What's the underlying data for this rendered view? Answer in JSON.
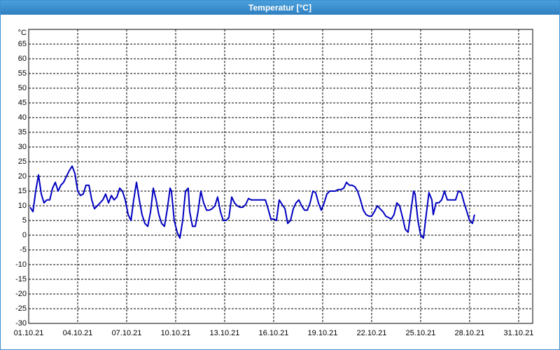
{
  "chart_data": {
    "type": "line",
    "title": "Temperatur [°C]",
    "y_unit": "°C",
    "xlim": [
      0,
      30.86
    ],
    "ylim": [
      -30,
      70
    ],
    "grid": true,
    "xticks": [
      {
        "value": 0,
        "label": "01.10.21"
      },
      {
        "value": 3,
        "label": "04.10.21"
      },
      {
        "value": 6,
        "label": "07.10.21"
      },
      {
        "value": 9,
        "label": "10.10.21"
      },
      {
        "value": 12,
        "label": "13.10.21"
      },
      {
        "value": 15,
        "label": "16.10.21"
      },
      {
        "value": 18,
        "label": "19.10.21"
      },
      {
        "value": 21,
        "label": "22.10.21"
      },
      {
        "value": 24,
        "label": "25.10.21"
      },
      {
        "value": 27,
        "label": "28.10.21"
      },
      {
        "value": 30,
        "label": "31.10.21"
      }
    ],
    "yticks": [
      -30,
      -25,
      -20,
      -15,
      -10,
      -5,
      0,
      5,
      10,
      15,
      20,
      25,
      30,
      35,
      40,
      45,
      50,
      55,
      60,
      65
    ],
    "series": [
      {
        "color": "#0000c0",
        "x": [
          0.09,
          0.26,
          0.43,
          0.6,
          0.77,
          0.94,
          1.11,
          1.29,
          1.46,
          1.63,
          1.8,
          1.97,
          2.14,
          2.31,
          2.49,
          2.66,
          2.83,
          3.0,
          3.17,
          3.34,
          3.51,
          3.69,
          3.86,
          4.03,
          4.2,
          4.37,
          4.54,
          4.71,
          4.89,
          5.06,
          5.23,
          5.4,
          5.57,
          5.74,
          5.91,
          6.09,
          6.26,
          6.43,
          6.6,
          6.77,
          6.94,
          7.11,
          7.29,
          7.46,
          7.63,
          7.8,
          7.97,
          8.14,
          8.31,
          8.49,
          8.66,
          8.74,
          8.91,
          9.09,
          9.26,
          9.43,
          9.6,
          9.77,
          9.86,
          10.03,
          10.2,
          10.37,
          10.54,
          10.71,
          10.89,
          11.06,
          11.23,
          11.4,
          11.57,
          11.74,
          11.91,
          12.09,
          12.26,
          12.43,
          12.6,
          12.77,
          12.94,
          13.11,
          13.29,
          13.46,
          13.63,
          13.8,
          13.97,
          14.14,
          14.31,
          14.49,
          14.66,
          14.83,
          15.0,
          15.17,
          15.34,
          15.51,
          15.69,
          15.86,
          16.03,
          16.2,
          16.37,
          16.54,
          16.71,
          16.89,
          17.06,
          17.23,
          17.4,
          17.57,
          17.74,
          17.91,
          18.09,
          18.26,
          18.43,
          18.6,
          18.77,
          18.94,
          19.11,
          19.29,
          19.46,
          19.63,
          19.8,
          19.97,
          20.14,
          20.31,
          20.49,
          20.66,
          20.83,
          21.0,
          21.17,
          21.34,
          21.51,
          21.69,
          21.86,
          22.03,
          22.2,
          22.37,
          22.54,
          22.71,
          22.89,
          23.06,
          23.23,
          23.4,
          23.57,
          23.66,
          23.83,
          24.0,
          24.17,
          24.34,
          24.51,
          24.69,
          24.77,
          24.94,
          25.11,
          25.29,
          25.46,
          25.63,
          25.8,
          25.97,
          26.14,
          26.31,
          26.49,
          26.66,
          26.83,
          27.0,
          27.17,
          27.3
        ],
        "values": [
          9.5,
          8,
          15,
          20.5,
          14,
          11,
          12,
          12,
          16,
          18,
          15,
          17,
          18,
          20,
          22,
          23.5,
          21,
          15,
          13.5,
          14,
          17,
          17,
          12,
          9,
          10,
          11,
          12,
          14,
          11,
          13.5,
          12,
          13,
          16,
          15,
          12,
          7,
          5,
          12,
          18,
          12,
          7,
          4,
          3,
          8,
          16,
          12,
          7,
          4,
          3,
          9,
          16,
          15,
          5,
          1,
          -1,
          5,
          15,
          16,
          8,
          3,
          3,
          8,
          15,
          11,
          8.5,
          8.5,
          9,
          10,
          13,
          8,
          5,
          5,
          6,
          13,
          11,
          10,
          9.5,
          9.5,
          10.5,
          12.5,
          12,
          12,
          12,
          12,
          12,
          12,
          9,
          5.5,
          5.5,
          5,
          12,
          10.5,
          9,
          4,
          5,
          9,
          11,
          12,
          10,
          8.5,
          8.5,
          11,
          15,
          14.5,
          11,
          8.5,
          11,
          14,
          15,
          15,
          15,
          15.5,
          15.5,
          16,
          18,
          17,
          17,
          16.5,
          15,
          12,
          8.5,
          7,
          6.5,
          6.5,
          8,
          10,
          9,
          8,
          6.5,
          6,
          5.5,
          7,
          11,
          10,
          6,
          2,
          1,
          8,
          15,
          14,
          5,
          0,
          -1,
          7,
          14.5,
          12,
          7,
          11,
          11,
          12,
          15,
          12,
          12,
          12,
          12,
          15,
          14.5,
          11,
          8,
          5,
          4,
          7
        ]
      }
    ]
  }
}
